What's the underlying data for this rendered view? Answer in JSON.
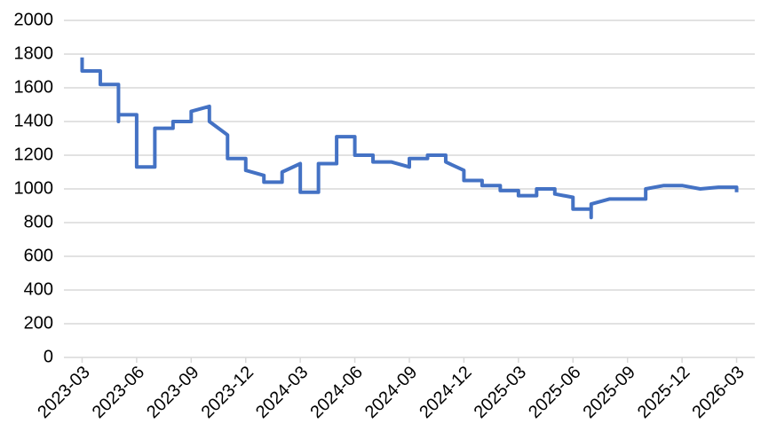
{
  "chart_data": {
    "type": "line",
    "x": [
      "2023-03",
      "2023-03",
      "2023-04",
      "2023-04",
      "2023-05",
      "2023-05",
      "2023-05",
      "2023-06",
      "2023-06",
      "2023-07",
      "2023-07",
      "2023-08",
      "2023-08",
      "2023-09",
      "2023-09",
      "2023-10",
      "2023-10",
      "2023-11",
      "2023-11",
      "2023-12",
      "2023-12",
      "2024-01",
      "2024-01",
      "2024-02",
      "2024-02",
      "2024-03",
      "2024-03",
      "2024-04",
      "2024-04",
      "2024-05",
      "2024-05",
      "2024-06",
      "2024-06",
      "2024-07",
      "2024-07",
      "2024-08",
      "2024-09",
      "2024-09",
      "2024-10",
      "2024-10",
      "2024-11",
      "2024-11",
      "2024-12",
      "2024-12",
      "2025-01",
      "2025-01",
      "2025-02",
      "2025-02",
      "2025-03",
      "2025-03",
      "2025-04",
      "2025-04",
      "2025-05",
      "2025-05",
      "2025-06",
      "2025-06",
      "2025-07",
      "2025-07",
      "2025-07",
      "2025-08",
      "2025-10",
      "2025-10",
      "2025-11",
      "2025-12",
      "2026-01",
      "2026-02",
      "2026-03",
      "2026-03"
    ],
    "series": [
      {
        "color": "#4472c4",
        "values": [
          1780,
          1700,
          1700,
          1620,
          1620,
          1400,
          1440,
          1440,
          1130,
          1130,
          1360,
          1360,
          1400,
          1400,
          1460,
          1490,
          1400,
          1320,
          1180,
          1180,
          1110,
          1080,
          1040,
          1040,
          1100,
          1150,
          980,
          980,
          1150,
          1150,
          1310,
          1310,
          1200,
          1200,
          1160,
          1160,
          1130,
          1180,
          1180,
          1200,
          1200,
          1160,
          1110,
          1050,
          1050,
          1020,
          1020,
          990,
          990,
          960,
          960,
          1000,
          1000,
          970,
          950,
          880,
          880,
          830,
          910,
          940,
          940,
          1000,
          1020,
          1020,
          1000,
          1010,
          1010,
          980
        ]
      }
    ],
    "xlim": [
      "2023-02",
      "2026-04"
    ],
    "xticks": [
      "2023-03",
      "2023-06",
      "2023-09",
      "2023-12",
      "2024-03",
      "2024-06",
      "2024-09",
      "2024-12",
      "2025-03",
      "2025-06",
      "2025-09",
      "2025-12",
      "2026-03"
    ],
    "ylim": [
      0,
      2000
    ],
    "yticks": [
      0,
      200,
      400,
      600,
      800,
      1000,
      1200,
      1400,
      1600,
      1800,
      2000
    ],
    "grid": true
  }
}
